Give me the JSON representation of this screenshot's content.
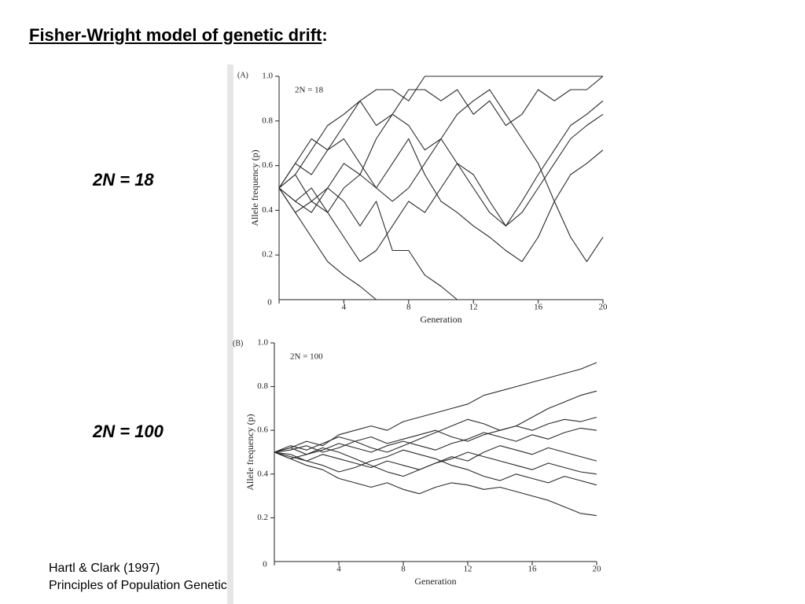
{
  "slide": {
    "title": "Fisher-Wright model of genetic drift",
    "title_suffix": ":",
    "labels": [
      "2N = 18",
      "2N = 100"
    ],
    "citation": [
      "Hartl & Clark (1997)",
      "Principles of Population Genetics"
    ]
  },
  "chart_data": [
    {
      "type": "line",
      "panel": "(A)",
      "annotation": "2N = 18",
      "x_label": "Generation",
      "y_label": "Allele frequency (p)",
      "x": [
        0,
        1,
        2,
        3,
        4,
        5,
        6,
        7,
        8,
        9,
        10,
        11,
        12,
        13,
        14,
        15,
        16,
        17,
        18,
        19,
        20
      ],
      "xlim": [
        0,
        20
      ],
      "xticks": [
        0,
        4,
        8,
        12,
        16,
        20
      ],
      "ylim": [
        0,
        1
      ],
      "yticks": [
        0.2,
        0.4,
        0.6,
        0.8,
        {
          "value": 1,
          "label": "1.0"
        }
      ],
      "color": "#2a2a2a",
      "series": [
        {
          "values": [
            0.5,
            0.61,
            0.72,
            0.67,
            0.78,
            0.89,
            0.94,
            0.94,
            0.89,
            1,
            1,
            1,
            1,
            1,
            1,
            1,
            1,
            1,
            1,
            1,
            1
          ]
        },
        {
          "values": [
            0.5,
            0.39,
            0.28,
            0.17,
            0.11,
            0.06,
            0,
            0,
            0,
            0,
            0,
            0,
            0,
            0,
            0,
            0,
            0,
            0,
            0,
            0,
            0
          ]
        },
        {
          "values": [
            0.5,
            0.56,
            0.44,
            0.5,
            0.61,
            0.56,
            0.72,
            0.83,
            0.78,
            0.67,
            0.72,
            0.61,
            0.5,
            0.39,
            0.33,
            0.44,
            0.56,
            0.67,
            0.78,
            0.83,
            0.89
          ]
        },
        {
          "values": [
            0.5,
            0.44,
            0.39,
            0.5,
            0.44,
            0.33,
            0.44,
            0.22,
            0.22,
            0.11,
            0.06,
            0,
            0,
            0,
            0,
            0,
            0,
            0,
            0,
            0,
            0
          ]
        },
        {
          "values": [
            0.5,
            0.61,
            0.56,
            0.67,
            0.72,
            0.61,
            0.5,
            0.44,
            0.5,
            0.61,
            0.72,
            0.83,
            0.89,
            0.94,
            0.83,
            0.72,
            0.61,
            0.44,
            0.28,
            0.17,
            0.28
          ]
        },
        {
          "values": [
            0.5,
            0.39,
            0.44,
            0.39,
            0.5,
            0.56,
            0.5,
            0.61,
            0.72,
            0.56,
            0.44,
            0.39,
            0.33,
            0.28,
            0.22,
            0.17,
            0.28,
            0.44,
            0.56,
            0.61,
            0.67
          ]
        },
        {
          "values": [
            0.5,
            0.56,
            0.67,
            0.78,
            0.83,
            0.89,
            0.78,
            0.83,
            0.94,
            0.94,
            0.89,
            0.94,
            0.83,
            0.89,
            0.78,
            0.83,
            0.94,
            0.89,
            0.94,
            0.94,
            1
          ]
        },
        {
          "values": [
            0.5,
            0.44,
            0.5,
            0.39,
            0.28,
            0.17,
            0.22,
            0.33,
            0.44,
            0.39,
            0.5,
            0.61,
            0.56,
            0.44,
            0.33,
            0.39,
            0.5,
            0.61,
            0.72,
            0.78,
            0.83
          ]
        }
      ]
    },
    {
      "type": "line",
      "panel": "(B)",
      "annotation": "2N = 100",
      "x_label": "Generation",
      "y_label": "Allele frequency (p)",
      "x": [
        0,
        1,
        2,
        3,
        4,
        5,
        6,
        7,
        8,
        9,
        10,
        11,
        12,
        13,
        14,
        15,
        16,
        17,
        18,
        19,
        20
      ],
      "xlim": [
        0,
        20
      ],
      "xticks": [
        0,
        4,
        8,
        12,
        16,
        20
      ],
      "ylim": [
        0,
        1
      ],
      "yticks": [
        0.2,
        0.4,
        0.6,
        0.8,
        {
          "value": 1,
          "label": "1.0"
        }
      ],
      "color": "#2a2a2a",
      "series": [
        {
          "values": [
            0.5,
            0.52,
            0.55,
            0.53,
            0.58,
            0.6,
            0.62,
            0.6,
            0.64,
            0.66,
            0.68,
            0.7,
            0.72,
            0.76,
            0.78,
            0.8,
            0.82,
            0.84,
            0.86,
            0.88,
            0.91
          ]
        },
        {
          "values": [
            0.5,
            0.47,
            0.44,
            0.42,
            0.38,
            0.36,
            0.34,
            0.36,
            0.33,
            0.31,
            0.34,
            0.36,
            0.35,
            0.33,
            0.34,
            0.32,
            0.3,
            0.28,
            0.25,
            0.22,
            0.21
          ]
        },
        {
          "values": [
            0.5,
            0.51,
            0.53,
            0.5,
            0.52,
            0.55,
            0.57,
            0.54,
            0.56,
            0.58,
            0.6,
            0.57,
            0.55,
            0.58,
            0.6,
            0.62,
            0.6,
            0.63,
            0.65,
            0.64,
            0.66
          ]
        },
        {
          "values": [
            0.5,
            0.48,
            0.46,
            0.49,
            0.47,
            0.45,
            0.43,
            0.46,
            0.44,
            0.42,
            0.45,
            0.47,
            0.5,
            0.48,
            0.46,
            0.44,
            0.42,
            0.45,
            0.43,
            0.41,
            0.4
          ]
        },
        {
          "values": [
            0.5,
            0.53,
            0.51,
            0.54,
            0.57,
            0.55,
            0.52,
            0.5,
            0.53,
            0.56,
            0.59,
            0.62,
            0.65,
            0.63,
            0.6,
            0.62,
            0.66,
            0.7,
            0.73,
            0.76,
            0.78
          ]
        },
        {
          "values": [
            0.5,
            0.49,
            0.46,
            0.44,
            0.41,
            0.43,
            0.46,
            0.48,
            0.51,
            0.49,
            0.47,
            0.44,
            0.42,
            0.39,
            0.37,
            0.4,
            0.38,
            0.36,
            0.39,
            0.37,
            0.35
          ]
        },
        {
          "values": [
            0.5,
            0.52,
            0.49,
            0.51,
            0.54,
            0.52,
            0.5,
            0.53,
            0.55,
            0.53,
            0.51,
            0.54,
            0.56,
            0.59,
            0.57,
            0.55,
            0.58,
            0.56,
            0.59,
            0.61,
            0.6
          ]
        },
        {
          "values": [
            0.5,
            0.47,
            0.49,
            0.52,
            0.5,
            0.47,
            0.44,
            0.41,
            0.39,
            0.42,
            0.45,
            0.48,
            0.46,
            0.5,
            0.53,
            0.51,
            0.49,
            0.52,
            0.5,
            0.48,
            0.46
          ]
        }
      ]
    }
  ]
}
